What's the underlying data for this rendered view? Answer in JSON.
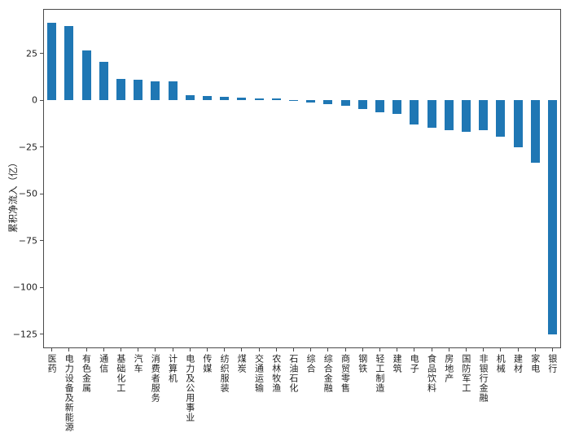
{
  "chart_data": {
    "type": "bar",
    "title": "",
    "xlabel": "",
    "ylabel": "累积净流入（亿）",
    "categories": [
      "医药",
      "电力设备及新能源",
      "有色金属",
      "通信",
      "基础化工",
      "汽车",
      "消费者服务",
      "计算机",
      "电力及公用事业",
      "传媒",
      "纺织服装",
      "煤炭",
      "交通运输",
      "农林牧渔",
      "石油石化",
      "综合",
      "综合金融",
      "商贸零售",
      "钢铁",
      "轻工制造",
      "建筑",
      "电子",
      "食品饮料",
      "房地产",
      "国防军工",
      "非银行金融",
      "机械",
      "建材",
      "家电",
      "银行"
    ],
    "values": [
      41.5,
      39.5,
      26.5,
      20.5,
      11.2,
      11.0,
      10.3,
      10.0,
      2.7,
      2.1,
      2.0,
      1.3,
      0.9,
      0.9,
      0.3,
      -1.3,
      -2.0,
      -3.1,
      -4.7,
      -6.4,
      -7.5,
      -13.0,
      -14.5,
      -16.0,
      -17.0,
      -16.0,
      -19.5,
      -25.2,
      -33.5,
      -125.3
    ],
    "yticks": [
      25,
      0,
      -25,
      -50,
      -75,
      -100,
      -125
    ],
    "ylim": [
      -132.5,
      48.8
    ],
    "grid": false,
    "legend": null,
    "bar_color": "#1f77b4",
    "axis_color": "#4a4a4a",
    "text_color": "#1f1f1f",
    "background_color": "#ffffff"
  }
}
